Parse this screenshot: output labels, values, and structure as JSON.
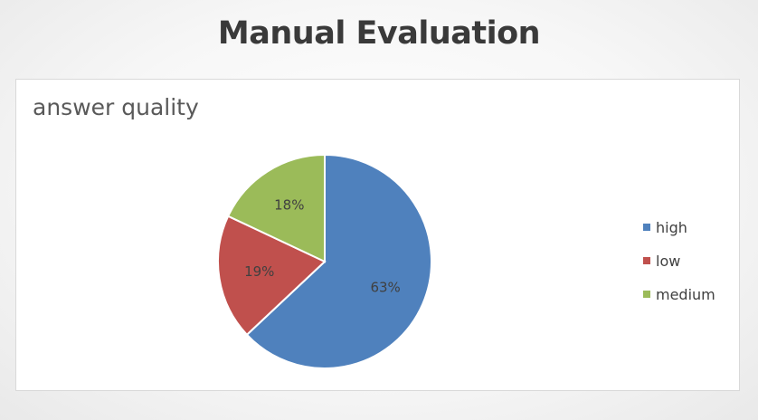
{
  "slide": {
    "title": "Manual Evaluation"
  },
  "chart_data": {
    "type": "pie",
    "title": "answer quality",
    "categories": [
      "high",
      "low",
      "medium"
    ],
    "values": [
      63,
      19,
      18
    ],
    "labels": [
      "63%",
      "19%",
      "18%"
    ],
    "colors": [
      "#4f81bd",
      "#c0504d",
      "#9bbb59"
    ],
    "legend": "right",
    "start_angle": "12 o'clock",
    "direction": "clockwise"
  }
}
